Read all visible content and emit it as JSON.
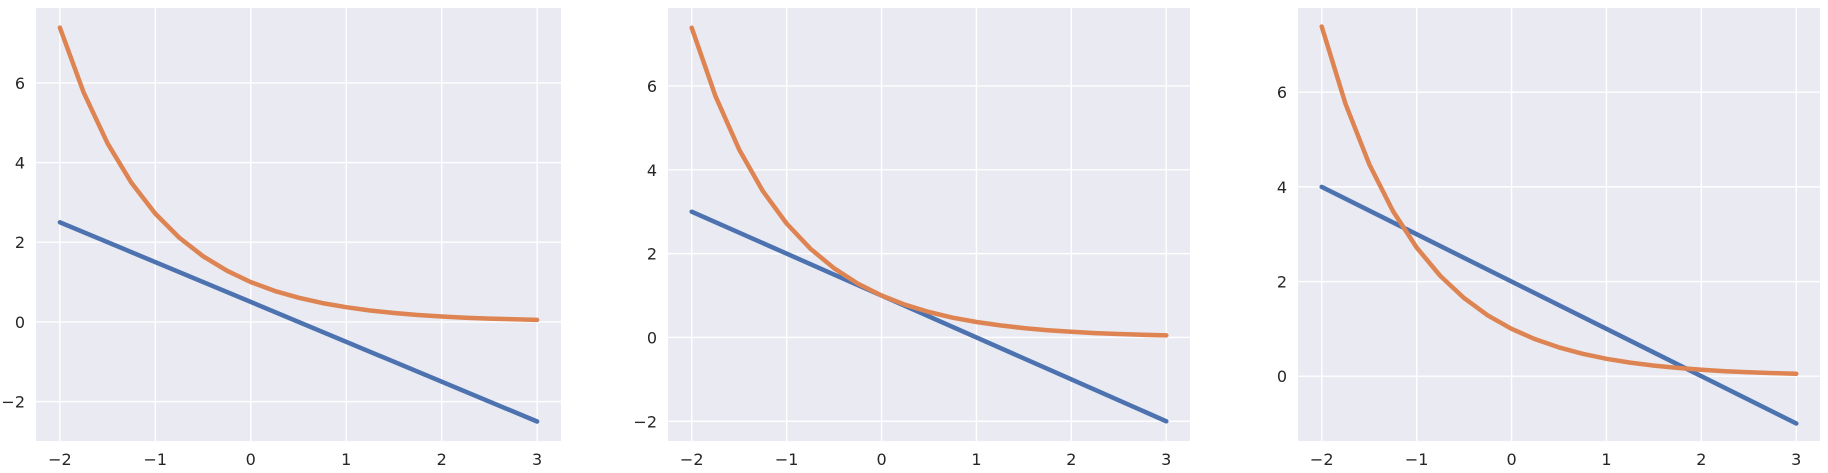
{
  "chart_data": [
    {
      "type": "line",
      "xlim": [
        -2.25,
        3.25
      ],
      "ylim": [
        -2.99,
        7.88
      ],
      "xticks": [
        -2,
        -1,
        0,
        1,
        2,
        3
      ],
      "yticks": [
        -2,
        0,
        2,
        4,
        6
      ],
      "xtick_labels": [
        "−2",
        "−1",
        "0",
        "1",
        "2",
        "3"
      ],
      "ytick_labels": [
        "−2",
        "0",
        "2",
        "4",
        "6"
      ],
      "grid": true,
      "series": [
        {
          "color": "#4c72b0",
          "x": [
            -2,
            3
          ],
          "y": [
            2.5,
            -2.5
          ]
        },
        {
          "color": "#dd8452",
          "x": [
            -2,
            -1.75,
            -1.5,
            -1.25,
            -1,
            -0.75,
            -0.5,
            -0.25,
            0,
            0.25,
            0.5,
            0.75,
            1,
            1.25,
            1.5,
            1.75,
            2,
            2.25,
            2.5,
            2.75,
            3
          ],
          "y": [
            7.389,
            5.755,
            4.482,
            3.49,
            2.718,
            2.117,
            1.649,
            1.284,
            1.0,
            0.779,
            0.607,
            0.472,
            0.368,
            0.287,
            0.223,
            0.174,
            0.135,
            0.105,
            0.082,
            0.064,
            0.05
          ]
        }
      ]
    },
    {
      "type": "line",
      "xlim": [
        -2.25,
        3.25
      ],
      "ylim": [
        -2.47,
        7.86
      ],
      "xticks": [
        -2,
        -1,
        0,
        1,
        2,
        3
      ],
      "yticks": [
        -2,
        0,
        2,
        4,
        6
      ],
      "xtick_labels": [
        "−2",
        "−1",
        "0",
        "1",
        "2",
        "3"
      ],
      "ytick_labels": [
        "−2",
        "0",
        "2",
        "4",
        "6"
      ],
      "grid": true,
      "series": [
        {
          "color": "#4c72b0",
          "x": [
            -2,
            3
          ],
          "y": [
            3,
            -2
          ]
        },
        {
          "color": "#dd8452",
          "x": [
            -2,
            -1.75,
            -1.5,
            -1.25,
            -1,
            -0.75,
            -0.5,
            -0.25,
            0,
            0.25,
            0.5,
            0.75,
            1,
            1.25,
            1.5,
            1.75,
            2,
            2.25,
            2.5,
            2.75,
            3
          ],
          "y": [
            7.389,
            5.755,
            4.482,
            3.49,
            2.718,
            2.117,
            1.649,
            1.284,
            1.0,
            0.779,
            0.607,
            0.472,
            0.368,
            0.287,
            0.223,
            0.174,
            0.135,
            0.105,
            0.082,
            0.064,
            0.05
          ]
        }
      ]
    },
    {
      "type": "line",
      "xlim": [
        -2.25,
        3.25
      ],
      "ylim": [
        -1.37,
        7.78
      ],
      "xticks": [
        -2,
        -1,
        0,
        1,
        2,
        3
      ],
      "yticks": [
        0,
        2,
        4,
        6
      ],
      "xtick_labels": [
        "−2",
        "−1",
        "0",
        "1",
        "2",
        "3"
      ],
      "ytick_labels": [
        "0",
        "2",
        "4",
        "6"
      ],
      "grid": true,
      "series": [
        {
          "color": "#4c72b0",
          "x": [
            -2,
            3
          ],
          "y": [
            4,
            -1
          ]
        },
        {
          "color": "#dd8452",
          "x": [
            -2,
            -1.75,
            -1.5,
            -1.25,
            -1,
            -0.75,
            -0.5,
            -0.25,
            0,
            0.25,
            0.5,
            0.75,
            1,
            1.25,
            1.5,
            1.75,
            2,
            2.25,
            2.5,
            2.75,
            3
          ],
          "y": [
            7.389,
            5.755,
            4.482,
            3.49,
            2.718,
            2.117,
            1.649,
            1.284,
            1.0,
            0.779,
            0.607,
            0.472,
            0.368,
            0.287,
            0.223,
            0.174,
            0.135,
            0.105,
            0.082,
            0.064,
            0.05
          ]
        }
      ]
    }
  ],
  "style": {
    "axes_facecolor": "#eaeaf2",
    "grid_color": "#ffffff",
    "tick_label_color": "#262626"
  }
}
